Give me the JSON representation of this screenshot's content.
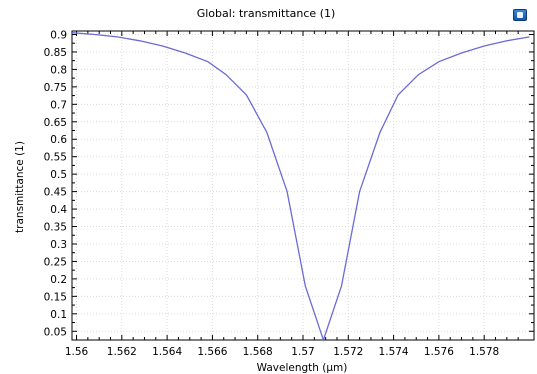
{
  "chart_data": {
    "type": "line",
    "title": "Global: transmittance (1)",
    "xlabel": "Wavelength (µm)",
    "ylabel": "transmittance (1)",
    "xlim": [
      1.5598,
      1.5802
    ],
    "ylim": [
      0.025,
      0.91
    ],
    "grid": true,
    "x_ticks": [
      "1.56",
      "1.562",
      "1.564",
      "1.566",
      "1.568",
      "1.57",
      "1.572",
      "1.574",
      "1.576",
      "1.578"
    ],
    "y_ticks": [
      "0.05",
      "0.1",
      "0.15",
      "0.2",
      "0.25",
      "0.3",
      "0.35",
      "0.4",
      "0.45",
      "0.5",
      "0.55",
      "0.6",
      "0.65",
      "0.7",
      "0.75",
      "0.8",
      "0.85",
      "0.9"
    ],
    "series_color": "#6b6bd6",
    "x": [
      1.5598,
      1.5608,
      1.5618,
      1.5628,
      1.5638,
      1.5648,
      1.5658,
      1.5666,
      1.5675,
      1.5684,
      1.5693,
      1.5701,
      1.5709,
      1.5717,
      1.5725,
      1.5734,
      1.5742,
      1.5751,
      1.576,
      1.577,
      1.578,
      1.579,
      1.58
    ],
    "y": [
      0.905,
      0.9,
      0.893,
      0.882,
      0.867,
      0.847,
      0.822,
      0.785,
      0.727,
      0.62,
      0.45,
      0.18,
      0.025,
      0.18,
      0.45,
      0.62,
      0.727,
      0.785,
      0.822,
      0.847,
      0.867,
      0.882,
      0.893
    ]
  },
  "ui": {
    "export_icon": "export-image-icon"
  }
}
